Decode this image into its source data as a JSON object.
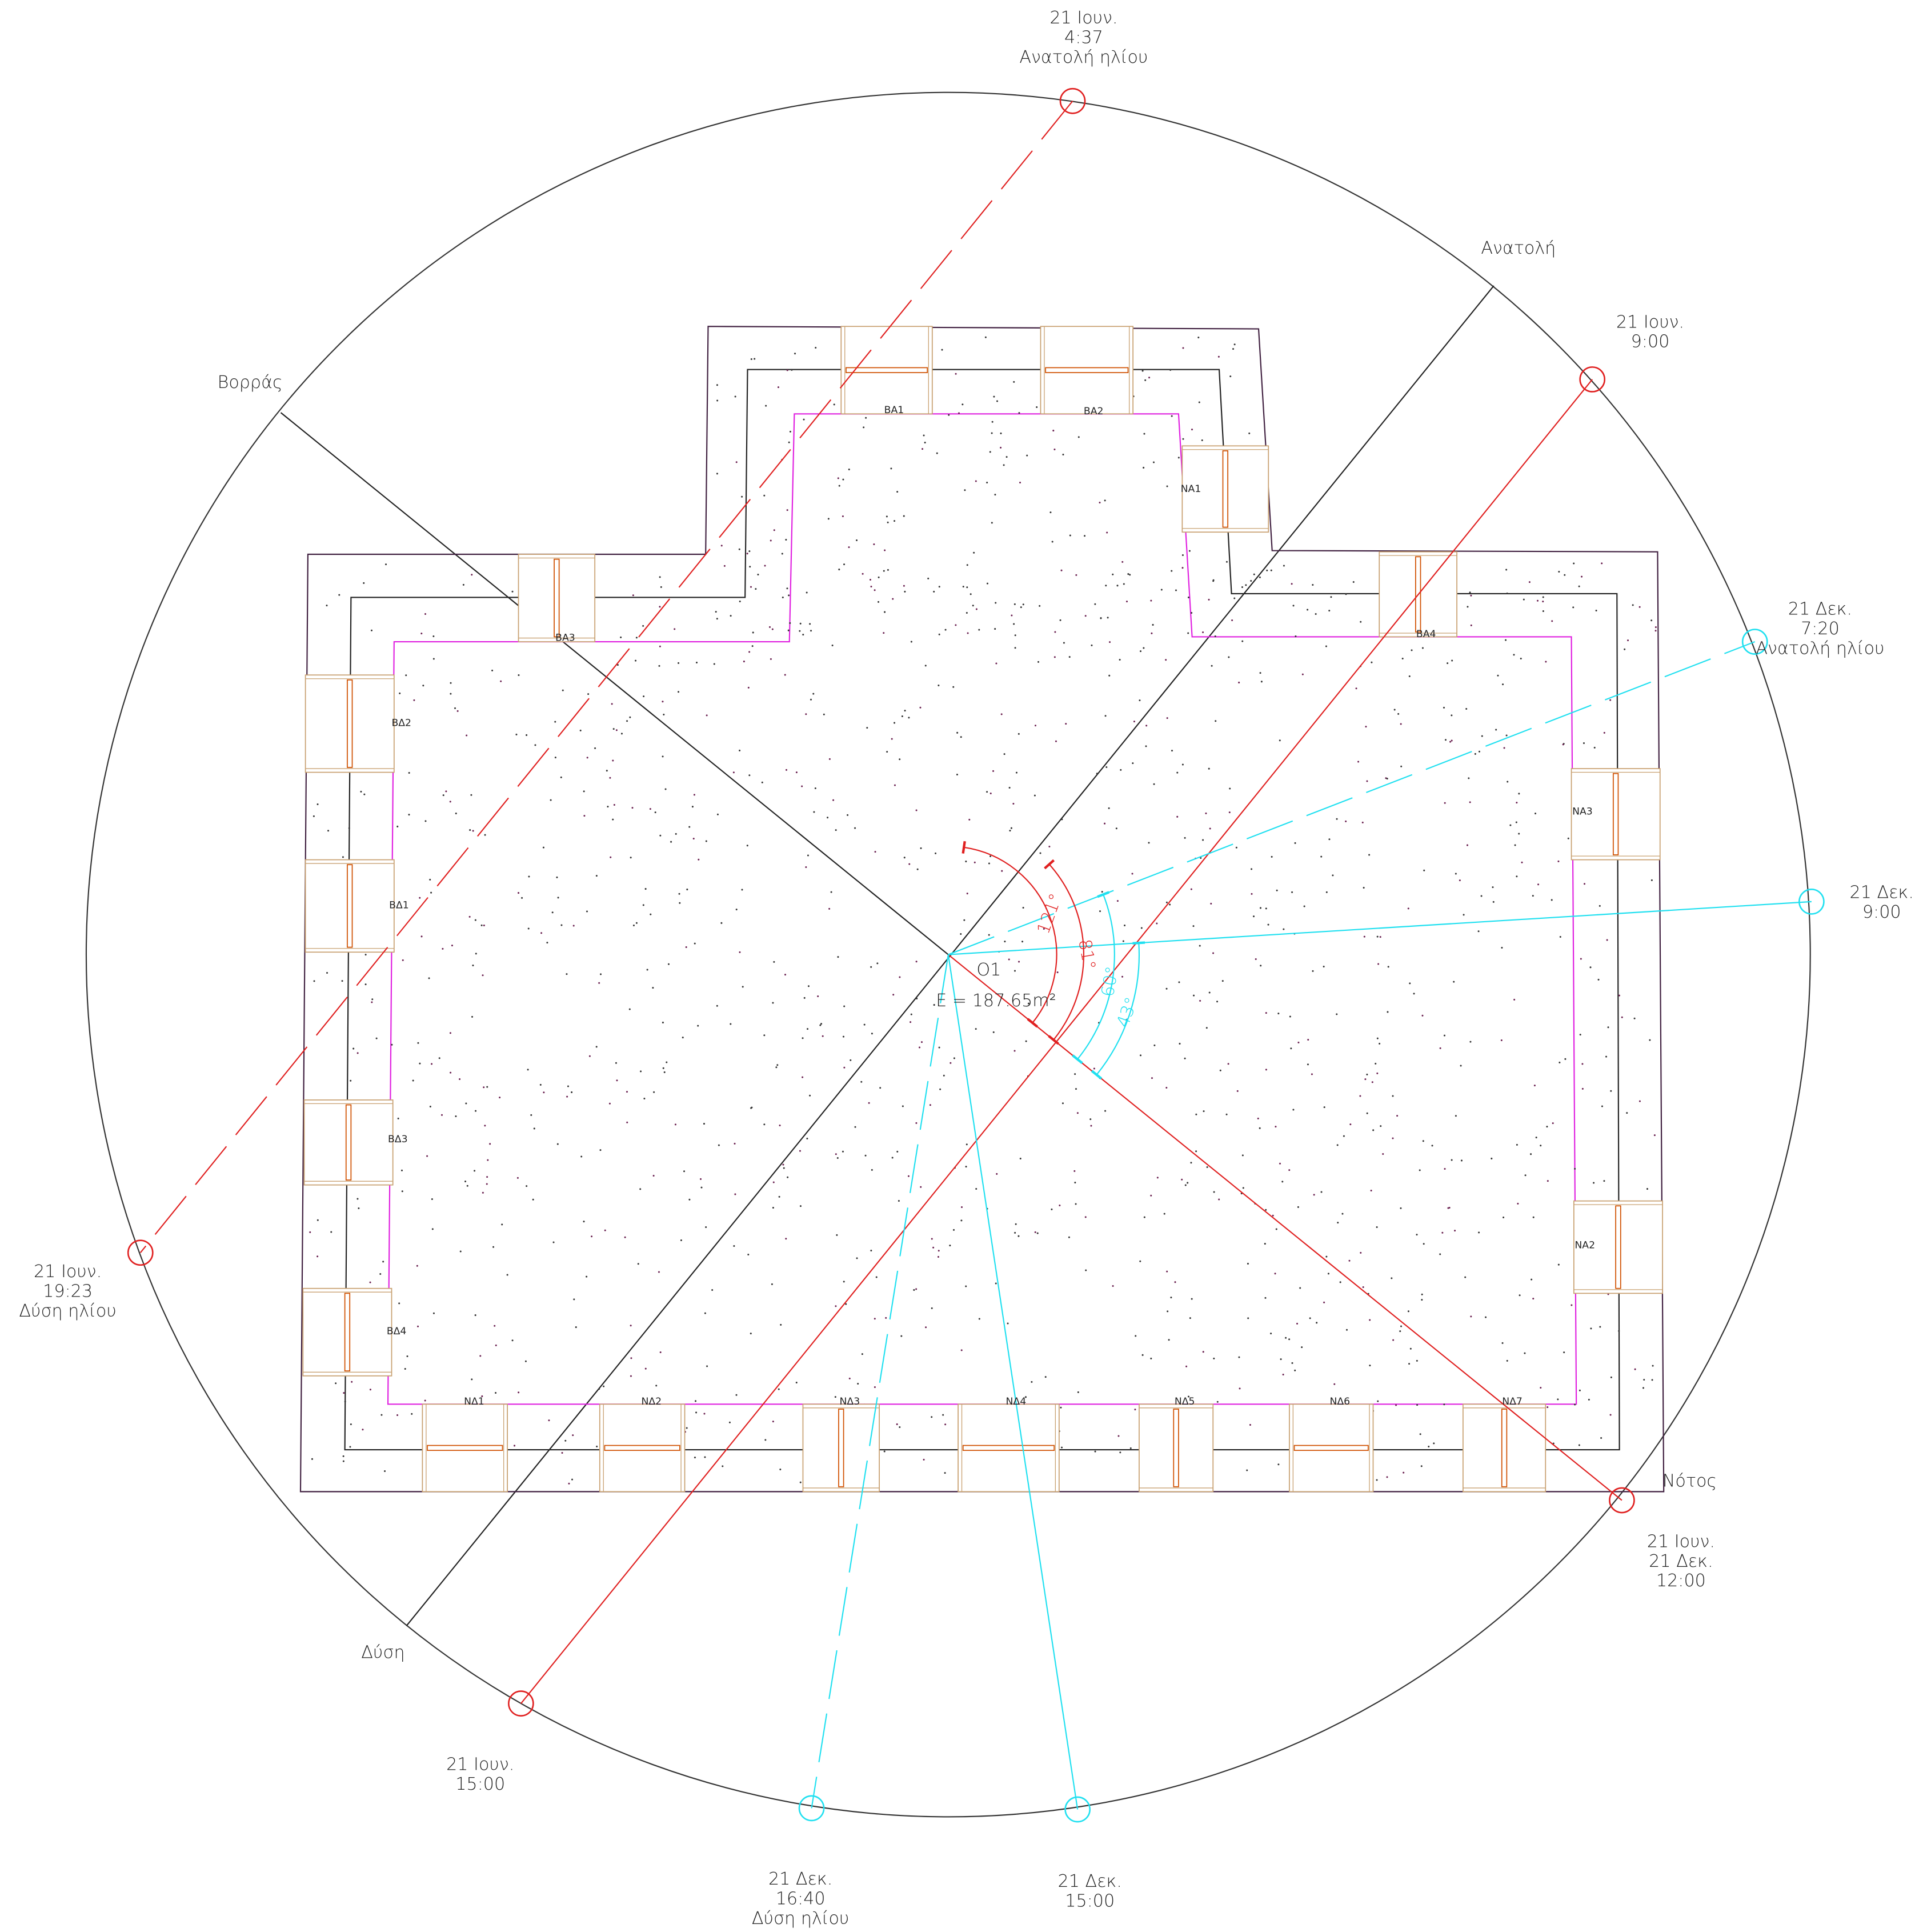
{
  "directions": {
    "north": "Βορράς",
    "east": "Ανατολή",
    "south": "Νότος",
    "west": "Δύση"
  },
  "sun_positions": [
    {
      "lines": [
        "21 Ιουν.",
        "4:37",
        "Ανατολή ηλίου"
      ]
    },
    {
      "lines": [
        "21 Ιουν.",
        "9:00"
      ]
    },
    {
      "lines": [
        "21 Δεκ.",
        "7:20",
        "Ανατολή ηλίου"
      ]
    },
    {
      "lines": [
        "21 Δεκ.",
        "9:00"
      ]
    },
    {
      "lines": [
        "21 Ιουν.",
        "21 Δεκ.",
        "12:00"
      ]
    },
    {
      "lines": [
        "21 Δεκ.",
        "15:00"
      ]
    },
    {
      "lines": [
        "21 Δεκ.",
        "16:40",
        "Δύση ηλίου"
      ]
    },
    {
      "lines": [
        "21 Ιουν.",
        "15:00"
      ]
    },
    {
      "lines": [
        "21 Ιουν.",
        "19:23",
        "Δύση ηλίου"
      ]
    }
  ],
  "room": {
    "name": "Ο1",
    "area": "E = 187.65m²"
  },
  "angles": [
    "121°",
    "81°",
    "60°",
    "43°"
  ],
  "windows": [
    "ΒΑ1",
    "ΒΑ2",
    "ΝΑ1",
    "ΒΑ3",
    "ΒΑ4",
    "ΒΔ2",
    "ΒΔ1",
    "ΝΑ3",
    "ΒΔ3",
    "ΝΑ2",
    "ΒΔ4",
    "ΝΔ1",
    "ΝΔ2",
    "ΝΔ3",
    "ΝΔ4",
    "ΝΔ5",
    "ΝΔ6",
    "ΝΔ7"
  ]
}
